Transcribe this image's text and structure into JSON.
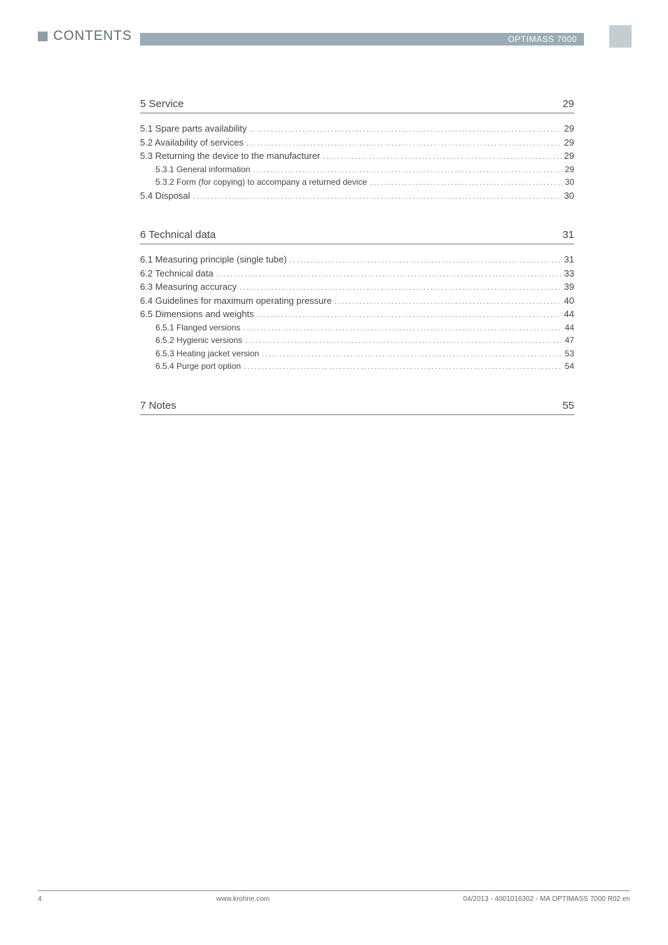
{
  "header": {
    "title": "CONTENTS",
    "product": "OPTIMASS 7000",
    "bar_bg": "#9aabb5",
    "square_bg": "#8f9ea8",
    "side_square_bg": "#c4cdd2"
  },
  "sections": [
    {
      "num": "5",
      "title": "Service",
      "page": "29",
      "items": [
        {
          "level": 0,
          "label": "5.1  Spare parts availability",
          "page": "29"
        },
        {
          "level": 0,
          "label": "5.2  Availability of services",
          "page": "29"
        },
        {
          "level": 0,
          "label": "5.3  Returning the device to the manufacturer",
          "page": "29"
        },
        {
          "level": 1,
          "label": "5.3.1  General information",
          "page": "29"
        },
        {
          "level": 1,
          "label": "5.3.2  Form (for copying) to accompany a returned device",
          "page": "30"
        },
        {
          "level": 0,
          "label": "5.4  Disposal",
          "page": "30"
        }
      ]
    },
    {
      "num": "6",
      "title": "Technical data",
      "page": "31",
      "items": [
        {
          "level": 0,
          "label": "6.1  Measuring principle (single tube)",
          "page": "31"
        },
        {
          "level": 0,
          "label": "6.2  Technical data",
          "page": "33"
        },
        {
          "level": 0,
          "label": "6.3  Measuring accuracy",
          "page": "39"
        },
        {
          "level": 0,
          "label": "6.4  Guidelines for maximum operating pressure",
          "page": "40"
        },
        {
          "level": 0,
          "label": "6.5  Dimensions and weights",
          "page": "44"
        },
        {
          "level": 1,
          "label": "6.5.1  Flanged versions",
          "page": "44"
        },
        {
          "level": 1,
          "label": "6.5.2  Hygienic versions",
          "page": "47"
        },
        {
          "level": 1,
          "label": "6.5.3  Heating jacket version",
          "page": "53"
        },
        {
          "level": 1,
          "label": "6.5.4  Purge port option",
          "page": "54"
        }
      ]
    },
    {
      "num": "7",
      "title": "Notes",
      "page": "55",
      "items": []
    }
  ],
  "footer": {
    "page_num": "4",
    "site": "www.krohne.com",
    "rev": "04/2013 - 4001016302 - MA OPTIMASS 7000 R02 en"
  }
}
